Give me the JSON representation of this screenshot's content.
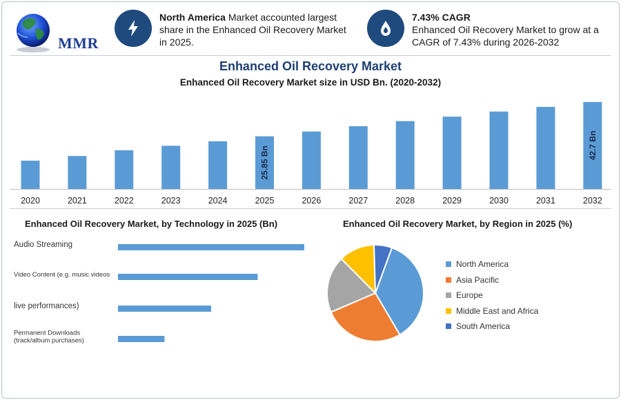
{
  "brand": {
    "name": "MMR"
  },
  "highlights": [
    {
      "icon": "lightning-icon",
      "bold": "North America",
      "text": " Market accounted largest share in the Enhanced Oil Recovery Market in 2025."
    },
    {
      "icon": "oil-drop-icon",
      "bold": "7.43% CAGR",
      "text": "Enhanced Oil Recovery Market to grow at a CAGR of 7.43% during 2026-2032"
    }
  ],
  "main_title": "Enhanced Oil Recovery Market",
  "chart_data": [
    {
      "type": "bar",
      "title": "Enhanced Oil Recovery Market size in USD Bn. (2020-2032)",
      "categories": [
        "2020",
        "2021",
        "2022",
        "2023",
        "2024",
        "2025",
        "2026",
        "2027",
        "2028",
        "2029",
        "2030",
        "2031",
        "2032"
      ],
      "values": [
        13.9,
        16.2,
        19.0,
        21.2,
        23.4,
        25.85,
        28.2,
        30.8,
        33.3,
        35.5,
        38.0,
        40.3,
        42.7
      ],
      "data_labels": [
        {
          "index": 5,
          "text": "25.85 Bn"
        },
        {
          "index": 12,
          "text": "42.7 Bn"
        }
      ],
      "ylim": [
        0,
        44
      ],
      "color": "#5b9bd5"
    },
    {
      "type": "bar",
      "orientation": "horizontal",
      "title": "Enhanced Oil Recovery Market, by Technology in 2025 (Bn)",
      "categories": [
        "Audio Streaming",
        "Video Content (e.g. music videos",
        "live performances)",
        "Permanent Downloads (track/album purchases)"
      ],
      "category_lines": [
        [
          "Audio Streaming"
        ],
        [
          "Video Content (e.g. music videos"
        ],
        [
          "live performances)"
        ],
        [
          "Permanent Downloads",
          "(track/album purchases)"
        ]
      ],
      "values": [
        100,
        75,
        50,
        25
      ],
      "xlim": [
        0,
        100
      ],
      "color": "#5b9bd5"
    },
    {
      "type": "pie",
      "title": "Enhanced Oil Recovery Market, by Region in 2025 (%)",
      "categories": [
        "North America",
        "Asia Pacific",
        "Europe",
        "Middle East and Africa",
        "South America"
      ],
      "values": [
        36,
        27,
        19,
        12,
        6
      ],
      "colors": [
        "#5b9bd5",
        "#ed7d31",
        "#a5a5a5",
        "#ffc000",
        "#4472c4"
      ],
      "legend_position": "right"
    }
  ]
}
